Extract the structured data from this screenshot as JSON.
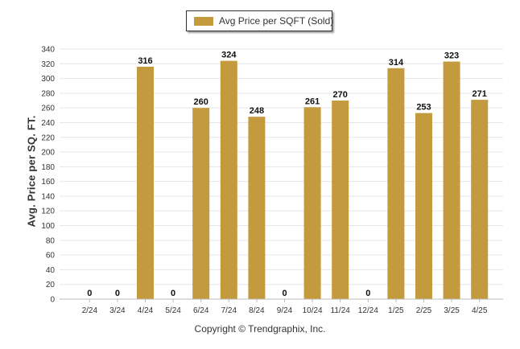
{
  "legend": {
    "label": "Avg Price per SQFT (Sold)"
  },
  "footer": {
    "text": "Copyright © Trendgraphix, Inc."
  },
  "colors": {
    "bar": "#C49A3E",
    "grid": "#E6E6E6",
    "axis": "#BBBBBB",
    "text": "#333333"
  },
  "chart_data": {
    "type": "bar",
    "title": "",
    "xlabel": "",
    "ylabel": "Avg. Price per SQ. FT.",
    "ylim": [
      0,
      340
    ],
    "ytick_step": 20,
    "grid": true,
    "legend_position": "top-center",
    "categories": [
      "2/24",
      "3/24",
      "4/24",
      "5/24",
      "6/24",
      "7/24",
      "8/24",
      "9/24",
      "10/24",
      "11/24",
      "12/24",
      "1/25",
      "2/25",
      "3/25",
      "4/25"
    ],
    "series": [
      {
        "name": "Avg Price per SQFT (Sold)",
        "values": [
          0,
          0,
          316,
          0,
          260,
          324,
          248,
          0,
          261,
          270,
          0,
          314,
          253,
          323,
          271
        ]
      }
    ]
  }
}
